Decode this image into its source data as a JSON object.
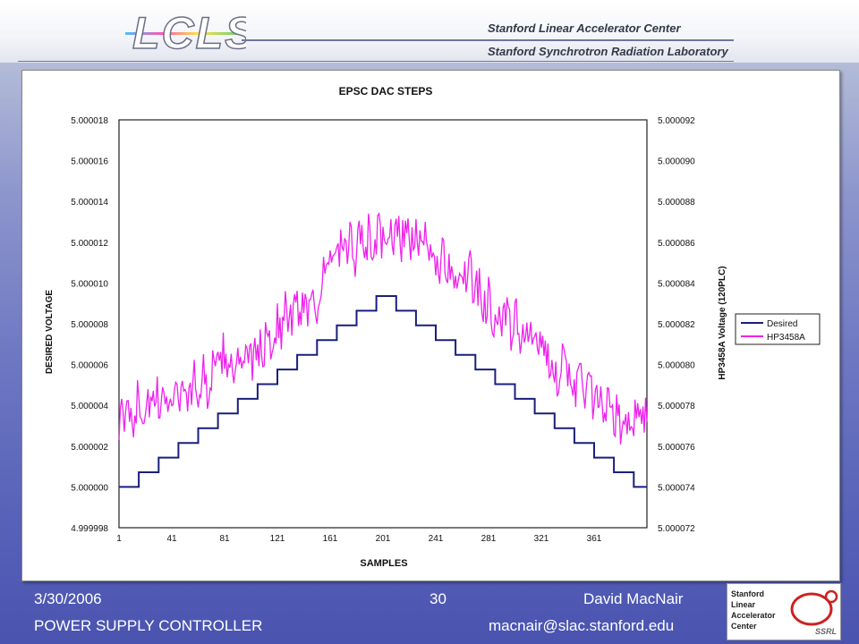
{
  "header": {
    "logo_text": "LCLS",
    "org_line1": "Stanford Linear Accelerator Center",
    "org_line2": "Stanford Synchrotron Radiation Laboratory"
  },
  "chart_data": {
    "type": "line",
    "title": "EPSC DAC STEPS",
    "xlabel": "SAMPLES",
    "ylabel": "DESIRED VOLTAGE",
    "y2label": "HP3458A Voltage (120PLC)",
    "xlim": [
      1,
      401
    ],
    "ylim": [
      4.999998,
      5.000018
    ],
    "y2lim": [
      5.000072,
      5.000092
    ],
    "x_ticks": [
      "1",
      "41",
      "81",
      "121",
      "161",
      "201",
      "241",
      "281",
      "321",
      "361"
    ],
    "y_ticks": [
      "4.999998",
      "5.000000",
      "5.000002",
      "5.000004",
      "5.000006",
      "5.000008",
      "5.000010",
      "5.000012",
      "5.000014",
      "5.000016",
      "5.000018"
    ],
    "y2_ticks": [
      "5.000072",
      "5.000074",
      "5.000076",
      "5.000078",
      "5.000080",
      "5.000082",
      "5.000084",
      "5.000086",
      "5.000088",
      "5.000090",
      "5.000092"
    ],
    "grid": true,
    "legend_position": "right",
    "series": [
      {
        "name": "Desired",
        "color": "#1a1f7a",
        "axis": "left",
        "step_values": [
          5.0,
          5.00000072,
          5.00000144,
          5.00000216,
          5.00000288,
          5.0000036,
          5.00000432,
          5.00000504,
          5.00000576,
          5.00000648,
          5.0000072,
          5.00000792,
          5.00000864,
          5.00000936,
          5.00000864,
          5.00000792,
          5.0000072,
          5.00000648,
          5.00000576,
          5.00000504,
          5.00000432,
          5.0000036,
          5.00000288,
          5.00000216,
          5.00000144,
          5.00000072,
          5.0
        ],
        "step_width": 15
      },
      {
        "name": "HP3458A",
        "color": "#ee22ee",
        "axis": "right",
        "x": [
          1,
          11,
          21,
          31,
          41,
          51,
          61,
          71,
          81,
          91,
          101,
          111,
          121,
          131,
          141,
          151,
          161,
          171,
          181,
          191,
          201,
          211,
          221,
          231,
          241,
          251,
          261,
          271,
          281,
          291,
          301,
          311,
          321,
          331,
          341,
          351,
          361,
          371,
          381,
          391,
          401
        ],
        "values": [
          5.000077,
          5.0000778,
          5.0000781,
          5.000078,
          5.0000786,
          5.0000787,
          5.000079,
          5.0000793,
          5.0000805,
          5.0000798,
          5.0000803,
          5.0000809,
          5.0000818,
          5.0000825,
          5.000083,
          5.0000832,
          5.000085,
          5.0000855,
          5.0000857,
          5.000086,
          5.0000862,
          5.0000865,
          5.0000863,
          5.0000858,
          5.0000852,
          5.0000848,
          5.0000846,
          5.0000838,
          5.000083,
          5.0000822,
          5.0000818,
          5.0000815,
          5.0000808,
          5.00008,
          5.0000795,
          5.000079,
          5.0000783,
          5.0000776,
          5.0000772,
          5.0000771,
          5.0000775
        ]
      }
    ]
  },
  "footer": {
    "date": "3/30/2006",
    "page": "30",
    "author": "David MacNair",
    "title": "POWER SUPPLY CONTROLLER",
    "email": "macnair@slac.stanford.edu"
  },
  "ssrl_logo": {
    "lines": [
      "Stanford",
      "Linear",
      "Accelerator",
      "Center"
    ],
    "badge": "SSRL"
  }
}
